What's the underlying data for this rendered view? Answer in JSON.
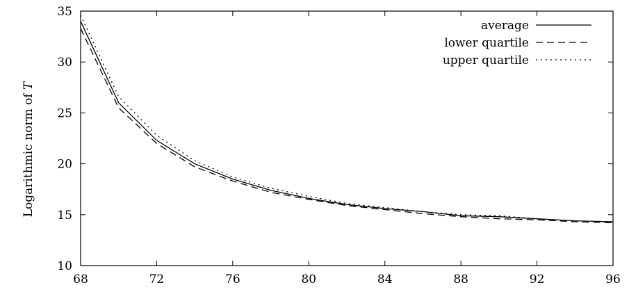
{
  "chart_data": {
    "type": "line",
    "title": "",
    "xlabel": "",
    "ylabel": "Logarithmic norm of ",
    "ylabel_var": "T",
    "xlim": [
      68,
      96
    ],
    "ylim": [
      10,
      35
    ],
    "xticks": [
      68,
      72,
      76,
      80,
      84,
      88,
      92,
      96
    ],
    "yticks": [
      10,
      15,
      20,
      25,
      30,
      35
    ],
    "grid": false,
    "legend_position": "top-right",
    "x": [
      68,
      70,
      72,
      74,
      76,
      78,
      80,
      82,
      84,
      86,
      88,
      90,
      92,
      94,
      96
    ],
    "series": [
      {
        "name": "average",
        "dash": "solid",
        "values": [
          34.0,
          26.0,
          22.3,
          20.0,
          18.5,
          17.4,
          16.6,
          16.0,
          15.6,
          15.3,
          14.9,
          14.8,
          14.6,
          14.4,
          14.3
        ]
      },
      {
        "name": "lower quartile",
        "dash": "dashed",
        "values": [
          33.3,
          25.5,
          22.0,
          19.7,
          18.3,
          17.2,
          16.5,
          15.9,
          15.5,
          15.1,
          14.8,
          14.6,
          14.5,
          14.3,
          14.2
        ]
      },
      {
        "name": "upper quartile",
        "dash": "dotted",
        "values": [
          34.6,
          26.6,
          22.8,
          20.3,
          18.7,
          17.6,
          16.8,
          16.1,
          15.7,
          15.3,
          15.0,
          14.9,
          14.6,
          14.4,
          14.3
        ]
      }
    ]
  }
}
